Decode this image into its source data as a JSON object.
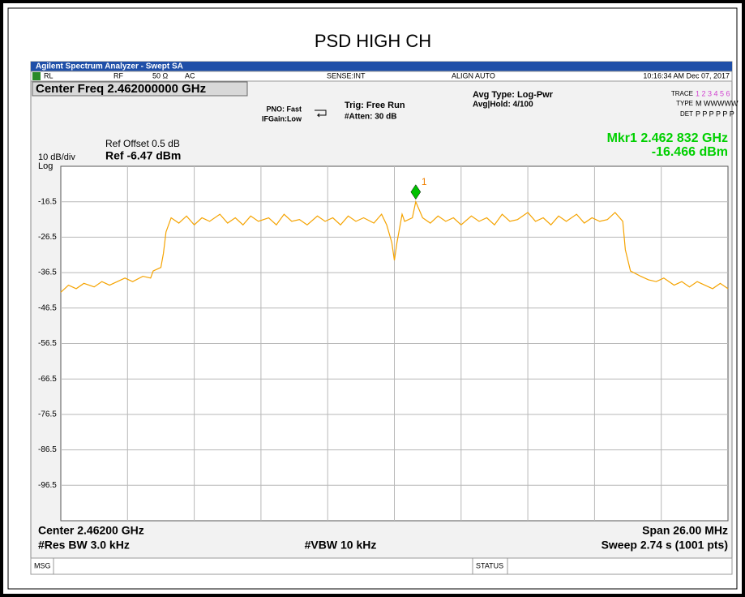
{
  "chart_data": {
    "type": "line",
    "title": "PSD HIGH CH",
    "x": [
      2.449,
      2.4493,
      2.4496,
      2.4499,
      2.4503,
      2.4506,
      2.4509,
      2.4512,
      2.4515,
      2.4518,
      2.4522,
      2.4525,
      2.4526,
      2.4529,
      2.453,
      2.4531,
      2.4533,
      2.4536,
      2.4539,
      2.4542,
      2.4545,
      2.4548,
      2.4552,
      2.4555,
      2.4558,
      2.4561,
      2.4564,
      2.4567,
      2.4571,
      2.4574,
      2.4577,
      2.458,
      2.4583,
      2.4586,
      2.459,
      2.4593,
      2.4596,
      2.4599,
      2.4602,
      2.4605,
      2.4608,
      2.4612,
      2.4615,
      2.4617,
      2.4619,
      2.462,
      2.4621,
      2.4623,
      2.4624,
      2.4627,
      2.462832,
      2.4631,
      2.4634,
      2.4637,
      2.464,
      2.4643,
      2.4646,
      2.465,
      2.4653,
      2.4656,
      2.4659,
      2.4662,
      2.4665,
      2.4668,
      2.4672,
      2.4675,
      2.4678,
      2.4681,
      2.4684,
      2.4687,
      2.4691,
      2.4694,
      2.4697,
      2.47,
      2.4703,
      2.4706,
      2.4709,
      2.471,
      2.4712,
      2.4716,
      2.4719,
      2.4722,
      2.4725,
      2.4729,
      2.4732,
      2.4735,
      2.4738,
      2.4741,
      2.4744,
      2.4747,
      2.475
    ],
    "series": [
      {
        "color": "#f5a300",
        "values": [
          -42,
          -40,
          -41,
          -39.5,
          -40.5,
          -39,
          -40,
          -39,
          -38,
          -39,
          -37.5,
          -38,
          -36,
          -35,
          -31,
          -25,
          -21,
          -22.5,
          -20.5,
          -23,
          -21,
          -22,
          -20,
          -22.5,
          -21,
          -23,
          -20.5,
          -22,
          -21,
          -23,
          -20,
          -22,
          -21.5,
          -23,
          -20.5,
          -22,
          -21,
          -23,
          -20.5,
          -22,
          -21,
          -22.5,
          -20,
          -23,
          -28,
          -33,
          -28,
          -20,
          -22,
          -21,
          -16.466,
          -21,
          -22.5,
          -20.5,
          -22,
          -21,
          -23,
          -20.5,
          -22,
          -21,
          -23,
          -20,
          -22,
          -21.5,
          -19.5,
          -22,
          -21,
          -23,
          -20.5,
          -22,
          -20,
          -22.5,
          -21,
          -22,
          -21.5,
          -19.5,
          -22,
          -30,
          -36,
          -37.5,
          -38.5,
          -39,
          -38,
          -40,
          -39,
          -40.5,
          -39,
          -40,
          -41,
          -39.5,
          -41
        ]
      }
    ],
    "xlim": [
      2.449,
      2.475
    ],
    "ylim": [
      -6.47,
      -106.47
    ],
    "yticks": [
      {
        "value": -16.47,
        "label": "-16.5"
      },
      {
        "value": -26.47,
        "label": "-26.5"
      },
      {
        "value": -36.47,
        "label": "-36.5"
      },
      {
        "value": -46.47,
        "label": "-46.5"
      },
      {
        "value": -56.47,
        "label": "-56.5"
      },
      {
        "value": -66.47,
        "label": "-66.5"
      },
      {
        "value": -76.47,
        "label": "-76.5"
      },
      {
        "value": -86.47,
        "label": "-86.5"
      },
      {
        "value": -96.47,
        "label": "-96.5"
      }
    ],
    "grid": true,
    "marker": {
      "label": "1",
      "x": 2.462832,
      "y": -16.466,
      "color": "#00c000"
    }
  },
  "ui": {
    "window_title": "Agilent Spectrum Analyzer - Swept SA",
    "status": [
      "RL",
      "RF",
      "50 Ω",
      "AC",
      "SENSE:INT",
      "ALIGN AUTO",
      "10:16:34 AM Dec 07, 2017"
    ],
    "center_freq": "Center Freq 2.462000000 GHz",
    "pno": "PNO: Fast",
    "ifgain": "IFGain:Low",
    "trig": "Trig: Free Run",
    "atten": "#Atten: 30 dB",
    "avg_type": "Avg Type: Log-Pwr",
    "avg_hold": "Avg|Hold: 4/100",
    "trace": "TRACE",
    "trace_nums": "1 2 3 4 5 6",
    "type": "TYPE",
    "type_val": "M WWWWW",
    "det": "DET",
    "det_val": "P P P P P P",
    "mkr_freq": "Mkr1 2.462 832 GHz",
    "mkr_amp": "-16.466 dBm",
    "ref_offset": "Ref Offset 0.5 dB",
    "ref": "Ref -6.47 dBm",
    "scale": "10 dB/div",
    "log": "Log",
    "center": "Center 2.46200 GHz",
    "span": "Span 26.00 MHz",
    "rbw": "#Res BW 3.0 kHz",
    "vbw": "#VBW 10 kHz",
    "sweep": "Sweep  2.74 s (1001 pts)",
    "msg": "MSG",
    "status_label": "STATUS"
  }
}
